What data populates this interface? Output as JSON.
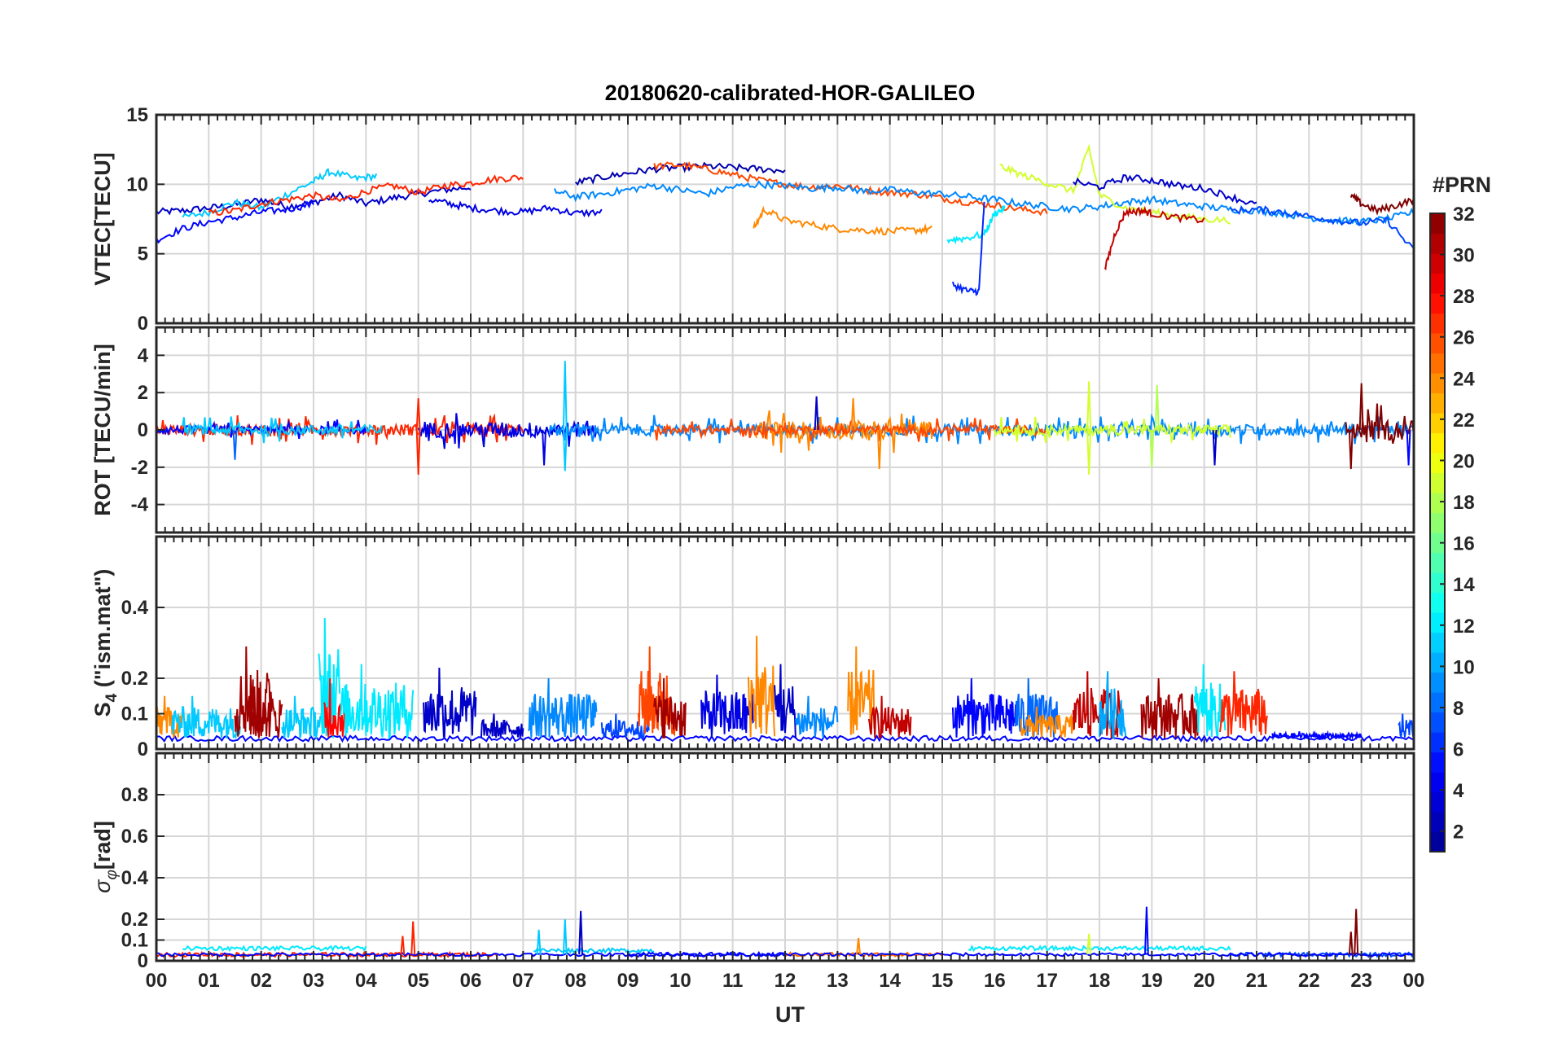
{
  "title": "20180620-calibrated-HOR-GALILEO",
  "xlabel": "UT",
  "x_ticks": [
    "00",
    "01",
    "02",
    "03",
    "04",
    "05",
    "06",
    "07",
    "08",
    "09",
    "10",
    "11",
    "12",
    "13",
    "14",
    "15",
    "16",
    "17",
    "18",
    "19",
    "20",
    "21",
    "22",
    "23",
    "00"
  ],
  "colorbar": {
    "label": "#PRN",
    "ticks": [
      "2",
      "4",
      "6",
      "8",
      "10",
      "12",
      "14",
      "16",
      "18",
      "20",
      "22",
      "24",
      "26",
      "28",
      "30",
      "32"
    ],
    "range": [
      1,
      32
    ],
    "colormap": "jet",
    "colors": [
      "#00008F",
      "#0000FF",
      "#00FFFF",
      "#FFFF00",
      "#FF0000",
      "#800000"
    ]
  },
  "chart_data": [
    {
      "type": "line",
      "panel": "VTEC",
      "ylabel": "VTEC[TECU]",
      "ylim": [
        0,
        15
      ],
      "y_ticks": [
        "0",
        "5",
        "10",
        "15"
      ],
      "xlim": [
        0,
        24
      ],
      "grid": true,
      "series": [
        {
          "prn": 3,
          "x": [
            0,
            0.5,
            1,
            1.5,
            2,
            2.5,
            3,
            3.5,
            4,
            4.5,
            5,
            5.5,
            6
          ],
          "y": [
            8,
            8.1,
            8.3,
            8.5,
            8.9,
            8.4,
            8.7,
            9.2,
            8.6,
            9.0,
            9.3,
            9.6,
            9.8
          ]
        },
        {
          "prn": 11,
          "x": [
            0.5,
            1,
            1.5,
            2,
            2.5,
            3,
            3.3,
            3.8,
            4.2
          ],
          "y": [
            7.6,
            8.0,
            8.7,
            8.3,
            9.3,
            10.2,
            10.9,
            10.4,
            10.6
          ]
        },
        {
          "prn": 27,
          "x": [
            1,
            1.5,
            2,
            2.5,
            3,
            3.5,
            4,
            4.5,
            5,
            5.5,
            6,
            6.5,
            7
          ],
          "y": [
            7.9,
            8.1,
            8.6,
            8.9,
            9.2,
            8.8,
            9.5,
            9.9,
            9.4,
            9.9,
            10.1,
            10.4,
            10.5
          ]
        },
        {
          "prn": 5,
          "x": [
            0,
            0.5,
            1,
            1.5,
            2,
            2.5,
            3
          ],
          "y": [
            6.0,
            6.8,
            7.3,
            7.6,
            8.0,
            8.2,
            8.6
          ]
        },
        {
          "prn": 4,
          "x": [
            5.2,
            5.6,
            6.0,
            6.5,
            7,
            7.5,
            8,
            8.5
          ],
          "y": [
            8.9,
            8.6,
            8.3,
            8.1,
            8.0,
            8.3,
            7.9,
            8.0
          ]
        },
        {
          "prn": 2,
          "x": [
            8,
            8.5,
            9,
            9.5,
            10,
            10.5,
            11,
            11.5,
            12
          ],
          "y": [
            10.1,
            10.5,
            10.8,
            11.1,
            11.2,
            11.3,
            11.2,
            11.1,
            11.0
          ]
        },
        {
          "prn": 26,
          "x": [
            9.5,
            10,
            10.5,
            11,
            11.5,
            12,
            12.5,
            13,
            13.5,
            14,
            14.5,
            15,
            15.5,
            16,
            16.5,
            17
          ],
          "y": [
            11.3,
            11.4,
            11.1,
            10.7,
            10.3,
            10.0,
            9.8,
            9.9,
            9.6,
            9.4,
            9.3,
            9.0,
            8.7,
            8.5,
            8.2,
            8.0
          ]
        },
        {
          "prn": 24,
          "x": [
            11.4,
            11.6,
            12,
            12.5,
            13,
            13.5,
            14,
            14.5,
            14.8
          ],
          "y": [
            6.8,
            8.2,
            7.4,
            7.1,
            6.8,
            6.7,
            6.6,
            6.7,
            6.8
          ]
        },
        {
          "prn": 9,
          "x": [
            7.6,
            8,
            8.5,
            9,
            9.5,
            10,
            10.5,
            11,
            11.5,
            12,
            12.5,
            13,
            13.5,
            14,
            14.5,
            15,
            15.5,
            16,
            16.5,
            17,
            17.5,
            18,
            18.5,
            19,
            19.5,
            20,
            20.5,
            21,
            21.5,
            22,
            22.5,
            23,
            23.5,
            24
          ],
          "y": [
            9.5,
            9.1,
            9.3,
            9.6,
            9.9,
            9.6,
            9.3,
            9.8,
            10.0,
            9.9,
            9.7,
            9.8,
            9.5,
            9.6,
            9.4,
            9.3,
            9.1,
            8.9,
            8.6,
            8.4,
            8.2,
            8.4,
            8.7,
            8.9,
            8.6,
            8.4,
            8.2,
            8.1,
            7.9,
            7.6,
            7.4,
            7.3,
            7.5,
            8.0
          ]
        },
        {
          "prn": 12,
          "x": [
            15.1,
            15.4,
            15.8,
            16,
            16.2
          ],
          "y": [
            6.0,
            6.1,
            6.4,
            7.9,
            8.3
          ]
        },
        {
          "prn": 6,
          "x": [
            15.2,
            15.5,
            15.7,
            15.8
          ],
          "y": [
            2.8,
            2.3,
            2.3,
            8.6
          ]
        },
        {
          "prn": 19,
          "x": [
            16.1,
            16.5,
            17,
            17.5,
            17.8,
            18,
            18.5,
            19,
            19.5,
            20,
            20.5
          ],
          "y": [
            11.3,
            10.7,
            10.1,
            9.5,
            12.6,
            9.2,
            8.3,
            8.0,
            7.7,
            7.5,
            7.4
          ]
        },
        {
          "prn": 30,
          "x": [
            18.1,
            18.3,
            18.5,
            18.8,
            19,
            19.5,
            20
          ],
          "y": [
            3.8,
            6.5,
            8.0,
            8.1,
            7.9,
            7.6,
            7.4
          ]
        },
        {
          "prn": 3,
          "x": [
            17.5,
            18,
            18.5,
            19,
            19.5,
            20,
            20.5,
            21
          ],
          "y": [
            10.2,
            9.8,
            10.5,
            10.3,
            9.9,
            9.7,
            9.1,
            8.5
          ]
        },
        {
          "prn": 32,
          "x": [
            22.8,
            23,
            23.3,
            23.6,
            24
          ],
          "y": [
            9.2,
            8.6,
            8.1,
            8.4,
            8.9
          ]
        },
        {
          "prn": 7,
          "x": [
            20.5,
            21,
            21.5,
            22,
            22.5,
            23,
            23.5,
            24
          ],
          "y": [
            8.1,
            8.2,
            8.0,
            7.7,
            7.4,
            7.2,
            7.4,
            5.2
          ]
        }
      ]
    },
    {
      "type": "line",
      "panel": "ROT",
      "ylabel": "ROT [TECU/min]",
      "ylim": [
        -5.5,
        5.5
      ],
      "y_ticks": [
        "-4",
        "-2",
        "0",
        "2",
        "4"
      ],
      "y_tick_values": [
        -4,
        -2,
        0,
        2,
        4
      ],
      "xlim": [
        0,
        24
      ],
      "grid": true,
      "noise_bands": [
        {
          "prn": 27,
          "x_range": [
            0,
            7
          ],
          "amplitude": 0.5
        },
        {
          "prn": 5,
          "x_range": [
            0,
            4
          ],
          "amplitude": 0.35
        },
        {
          "prn": 11,
          "x_range": [
            0.5,
            4.3
          ],
          "amplitude": 0.45
        },
        {
          "prn": 4,
          "x_range": [
            5,
            8.5
          ],
          "amplitude": 0.7
        },
        {
          "prn": 9,
          "x_range": [
            7.5,
            24
          ],
          "amplitude": 0.5
        },
        {
          "prn": 24,
          "x_range": [
            11.4,
            14.8
          ],
          "amplitude": 0.8
        },
        {
          "prn": 26,
          "x_range": [
            9.5,
            17
          ],
          "amplitude": 0.4
        },
        {
          "prn": 19,
          "x_range": [
            16,
            20.5
          ],
          "amplitude": 0.45
        },
        {
          "prn": 32,
          "x_range": [
            22.7,
            24
          ],
          "amplitude": 0.9
        }
      ],
      "spikes": [
        {
          "prn": 8,
          "x": 1.5,
          "y": -1.6
        },
        {
          "prn": 27,
          "x": 5.0,
          "y": -2.4
        },
        {
          "prn": 27,
          "x": 5.0,
          "y": 1.7
        },
        {
          "prn": 11,
          "x": 7.8,
          "y": 3.7
        },
        {
          "prn": 11,
          "x": 7.8,
          "y": -2.2
        },
        {
          "prn": 4,
          "x": 7.4,
          "y": -1.9
        },
        {
          "prn": 24,
          "x": 13.3,
          "y": 1.7
        },
        {
          "prn": 24,
          "x": 13.8,
          "y": -2.1
        },
        {
          "prn": 3,
          "x": 12.6,
          "y": 1.8
        },
        {
          "prn": 19,
          "x": 17.8,
          "y": 2.6
        },
        {
          "prn": 19,
          "x": 17.8,
          "y": -2.4
        },
        {
          "prn": 18,
          "x": 19.1,
          "y": 2.4
        },
        {
          "prn": 18,
          "x": 19.0,
          "y": -2.0
        },
        {
          "prn": 3,
          "x": 20.2,
          "y": -1.9
        },
        {
          "prn": 32,
          "x": 23.0,
          "y": 2.5
        },
        {
          "prn": 32,
          "x": 22.8,
          "y": -2.1
        },
        {
          "prn": 5,
          "x": 23.9,
          "y": -1.9
        }
      ]
    },
    {
      "type": "line",
      "panel": "S4",
      "ylabel": "S4 (\"ism.mat\")",
      "ylim": [
        0,
        0.6
      ],
      "y_ticks": [
        "0",
        "0.1",
        "0.2",
        "0.4"
      ],
      "y_tick_values": [
        0,
        0.1,
        0.2,
        0.4
      ],
      "xlim": [
        0,
        24
      ],
      "grid": true,
      "baseline": 0.03,
      "bursts": [
        {
          "prn": 24,
          "x_range": [
            0,
            0.5
          ],
          "peak": 0.15
        },
        {
          "prn": 11,
          "x_range": [
            0.3,
            1.6
          ],
          "peak": 0.15
        },
        {
          "prn": 31,
          "x_range": [
            1.5,
            2.2
          ],
          "peak": 0.29
        },
        {
          "prn": 31,
          "x_range": [
            1.8,
            2.4
          ],
          "peak": 0.19
        },
        {
          "prn": 11,
          "x_range": [
            2.4,
            3.2
          ],
          "peak": 0.15
        },
        {
          "prn": 12,
          "x_range": [
            3.1,
            3.5
          ],
          "peak": 0.37
        },
        {
          "prn": 28,
          "x_range": [
            3.2,
            3.6
          ],
          "peak": 0.2
        },
        {
          "prn": 12,
          "x_range": [
            3.5,
            4.9
          ],
          "peak": 0.24
        },
        {
          "prn": 3,
          "x_range": [
            5.1,
            6.1
          ],
          "peak": 0.23
        },
        {
          "prn": 3,
          "x_range": [
            6.2,
            7.0
          ],
          "peak": 0.1
        },
        {
          "prn": 9,
          "x_range": [
            7.1,
            8.4
          ],
          "peak": 0.2
        },
        {
          "prn": 7,
          "x_range": [
            8.5,
            9.4
          ],
          "peak": 0.1
        },
        {
          "prn": 26,
          "x_range": [
            9.2,
            9.9
          ],
          "peak": 0.29
        },
        {
          "prn": 31,
          "x_range": [
            9.5,
            10.1
          ],
          "peak": 0.2
        },
        {
          "prn": 4,
          "x_range": [
            10.4,
            11.4
          ],
          "peak": 0.21
        },
        {
          "prn": 24,
          "x_range": [
            11.3,
            11.8
          ],
          "peak": 0.32
        },
        {
          "prn": 3,
          "x_range": [
            11.8,
            12.2
          ],
          "peak": 0.24
        },
        {
          "prn": 9,
          "x_range": [
            12.2,
            13.0
          ],
          "peak": 0.15
        },
        {
          "prn": 24,
          "x_range": [
            13.2,
            13.7
          ],
          "peak": 0.29
        },
        {
          "prn": 30,
          "x_range": [
            13.6,
            14.4
          ],
          "peak": 0.15
        },
        {
          "prn": 5,
          "x_range": [
            15.2,
            16.4
          ],
          "peak": 0.2
        },
        {
          "prn": 8,
          "x_range": [
            16.4,
            17.2
          ],
          "peak": 0.2
        },
        {
          "prn": 24,
          "x_range": [
            16.5,
            17.5
          ],
          "peak": 0.12
        },
        {
          "prn": 30,
          "x_range": [
            17.5,
            18.4
          ],
          "peak": 0.22
        },
        {
          "prn": 10,
          "x_range": [
            18.0,
            18.5
          ],
          "peak": 0.22
        },
        {
          "prn": 31,
          "x_range": [
            18.8,
            19.9
          ],
          "peak": 0.2
        },
        {
          "prn": 12,
          "x_range": [
            19.8,
            20.4
          ],
          "peak": 0.24
        },
        {
          "prn": 27,
          "x_range": [
            20.3,
            21.2
          ],
          "peak": 0.22
        },
        {
          "prn": 5,
          "x_range": [
            21.3,
            23.0
          ],
          "peak": 0.05
        },
        {
          "prn": 7,
          "x_range": [
            23.7,
            24.0
          ],
          "peak": 0.1
        }
      ]
    },
    {
      "type": "line",
      "panel": "sigma_phi",
      "ylabel": "σφ[rad]",
      "ylim": [
        0,
        1.0
      ],
      "y_ticks": [
        "0",
        "0.1",
        "0.2",
        "0.4",
        "0.6",
        "0.8"
      ],
      "y_tick_values": [
        0,
        0.1,
        0.2,
        0.4,
        0.6,
        0.8
      ],
      "xlim": [
        0,
        24
      ],
      "grid": true,
      "baseline": 0.03,
      "segments": [
        {
          "prn": 12,
          "x_range": [
            0.5,
            4.0
          ],
          "level": 0.06
        },
        {
          "prn": 27,
          "x_range": [
            0,
            6.5
          ],
          "level": 0.03
        },
        {
          "prn": 11,
          "x_range": [
            7.2,
            9.5
          ],
          "level": 0.05
        },
        {
          "prn": 5,
          "x_range": [
            9.0,
            12.0
          ],
          "level": 0.03
        },
        {
          "prn": 25,
          "x_range": [
            12.0,
            15.0
          ],
          "level": 0.03
        },
        {
          "prn": 12,
          "x_range": [
            15.5,
            20.5
          ],
          "level": 0.06
        },
        {
          "prn": 7,
          "x_range": [
            20.5,
            24.0
          ],
          "level": 0.03
        }
      ],
      "spikes": [
        {
          "prn": 27,
          "x": 4.9,
          "y": 0.19
        },
        {
          "prn": 27,
          "x": 4.7,
          "y": 0.12
        },
        {
          "prn": 11,
          "x": 7.3,
          "y": 0.15
        },
        {
          "prn": 11,
          "x": 7.8,
          "y": 0.2
        },
        {
          "prn": 3,
          "x": 8.1,
          "y": 0.24
        },
        {
          "prn": 24,
          "x": 13.4,
          "y": 0.11
        },
        {
          "prn": 19,
          "x": 17.8,
          "y": 0.13
        },
        {
          "prn": 5,
          "x": 18.9,
          "y": 0.26
        },
        {
          "prn": 32,
          "x": 22.9,
          "y": 0.25
        },
        {
          "prn": 32,
          "x": 22.8,
          "y": 0.14
        }
      ]
    }
  ]
}
